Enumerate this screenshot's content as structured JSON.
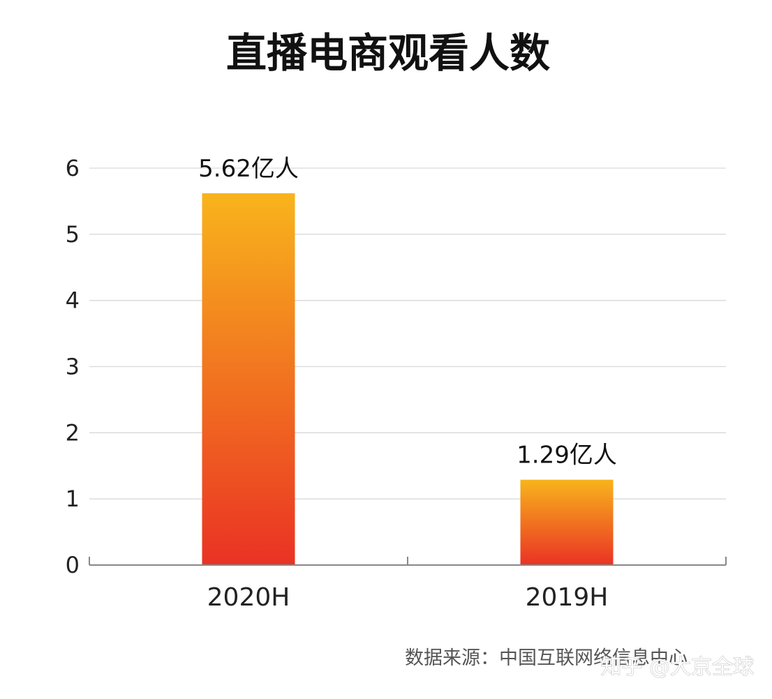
{
  "chart_data": {
    "type": "bar",
    "title": "直播电商观看人数",
    "categories": [
      "2020H",
      "2019H"
    ],
    "values": [
      5.62,
      1.29
    ],
    "data_labels": [
      "5.62亿人",
      "1.29亿人"
    ],
    "yticks": [
      0,
      1,
      2,
      3,
      4,
      5,
      6
    ],
    "ylim": [
      0,
      6
    ],
    "xlabel": "",
    "ylabel": "",
    "grid": true,
    "legend": "none",
    "colors": {
      "bar_top": "#f8b41c",
      "bar_bottom": "#ea3224"
    }
  },
  "source": "数据来源：中国互联网络信息中心",
  "watermark": "知乎 @大京全球"
}
